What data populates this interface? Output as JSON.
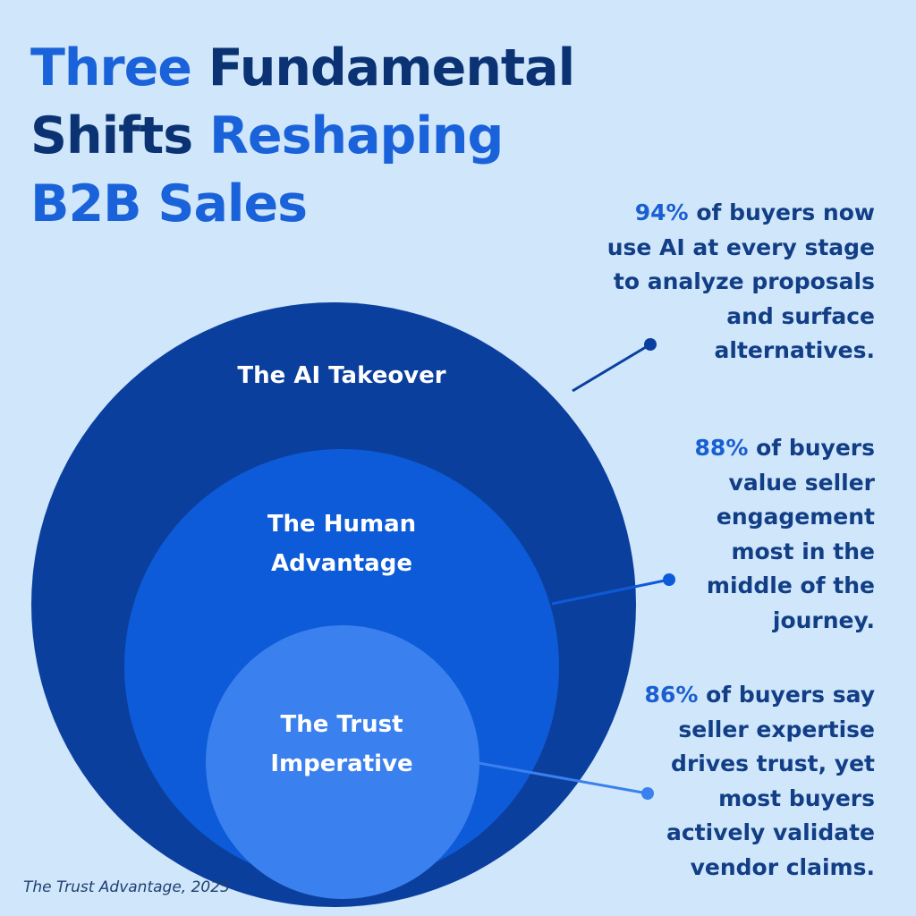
{
  "title": {
    "part1": "Three",
    "part2": "Fundamental",
    "part3": "Shifts",
    "part4": "Reshaping",
    "part5": "B2B Sales"
  },
  "circles": [
    {
      "label": "The AI Takeover",
      "color": "#0b3f9e"
    },
    {
      "label_line1": "The Human",
      "label_line2": "Advantage",
      "color": "#0d5bd8"
    },
    {
      "label_line1": "The Trust",
      "label_line2": "Imperative",
      "color": "#3a80ee"
    }
  ],
  "stats": [
    {
      "pct": "94%",
      "lines": [
        " of buyers now",
        "use AI at every stage",
        "to analyze proposals",
        "and surface",
        "alternatives."
      ]
    },
    {
      "pct": "88%",
      "lines": [
        " of buyers",
        "value seller",
        "engagement",
        "most in the",
        "middle of the",
        "journey."
      ]
    },
    {
      "pct": "86%",
      "lines": [
        " of buyers say",
        "seller expertise",
        "drives trust, yet",
        "most buyers",
        "actively validate",
        "vendor claims."
      ]
    }
  ],
  "source": "The Trust Advantage, 2025",
  "colors": {
    "background": "#cfe6fb",
    "title_dark": "#0b3373",
    "title_blue": "#1a62d9",
    "connector_dark": "#0b3f9e",
    "connector_light": "#3a80ee"
  }
}
